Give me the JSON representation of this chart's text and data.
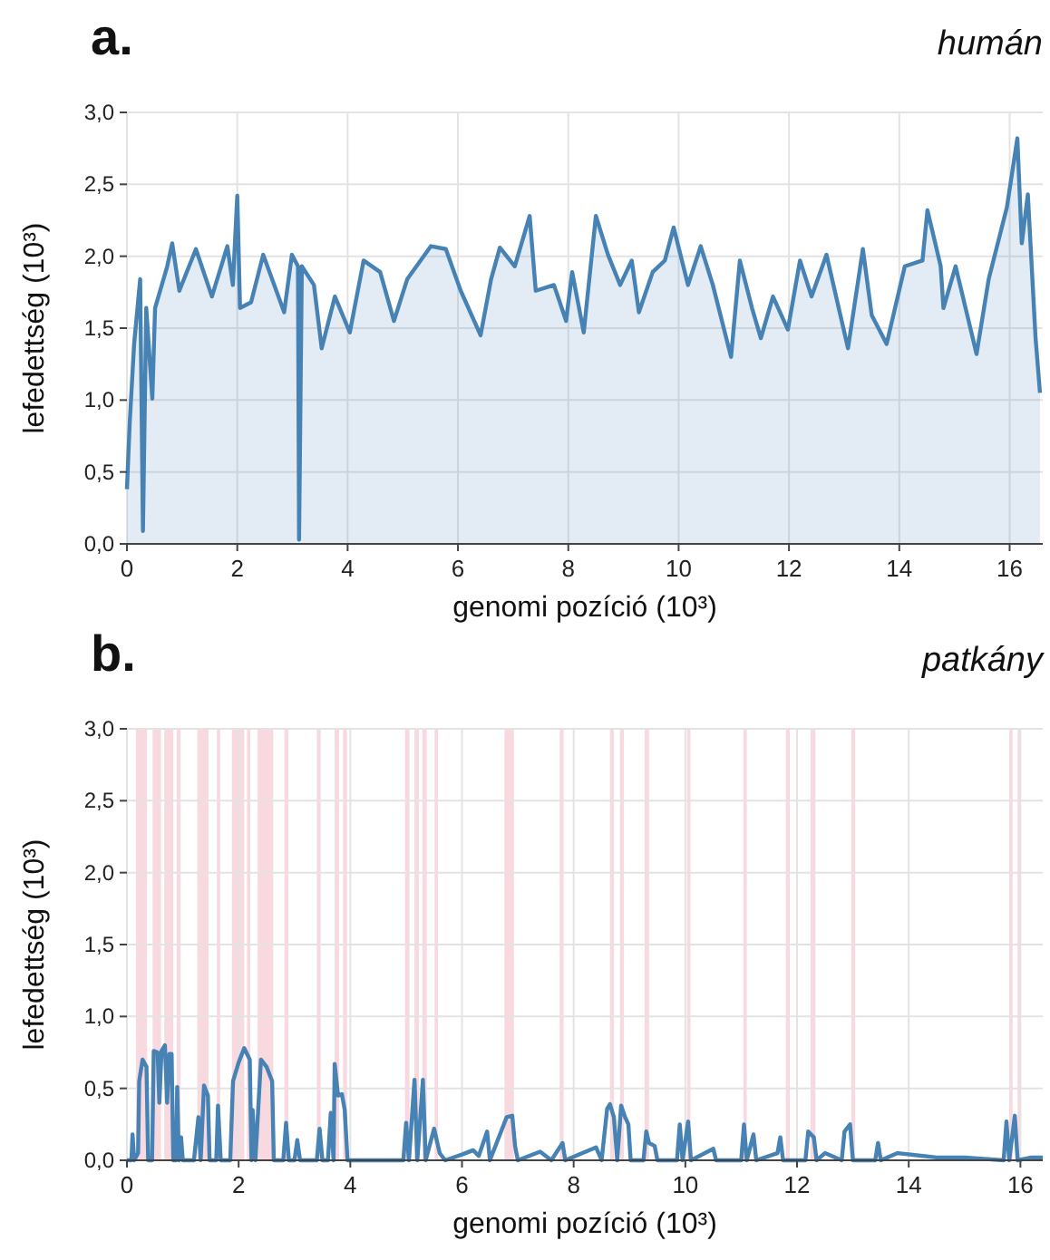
{
  "chart_data": [
    {
      "type": "area",
      "title": "a.",
      "subtitle": "humán",
      "xlabel": "genomi pozíció (10³)",
      "ylabel": "lefedettség (10³)",
      "color": "#4682b4",
      "grid": true,
      "xlim": [
        0,
        16.6
      ],
      "ylim": [
        0,
        3
      ],
      "xticks": [
        0,
        2,
        4,
        6,
        8,
        10,
        12,
        14,
        16
      ],
      "yticks": [
        {
          "value": 0,
          "label": "0,0"
        },
        {
          "value": 0.5,
          "label": "0,5"
        },
        {
          "value": 1,
          "label": "1,0"
        },
        {
          "value": 1.5,
          "label": "1,5"
        },
        {
          "value": 2,
          "label": "2,0"
        },
        {
          "value": 2.5,
          "label": "2,5"
        },
        {
          "value": 3,
          "label": "3,0"
        }
      ],
      "x": [
        0,
        0.05,
        0.13,
        0.24,
        0.29,
        0.35,
        0.46,
        0.51,
        0.73,
        0.82,
        0.95,
        1.25,
        1.54,
        1.82,
        1.92,
        2.0,
        2.05,
        2.25,
        2.47,
        2.85,
        2.99,
        3.1,
        3.12,
        3.17,
        3.39,
        3.53,
        3.77,
        4.04,
        4.29,
        4.59,
        4.84,
        5.08,
        5.51,
        5.78,
        6.05,
        6.41,
        6.6,
        6.76,
        7.03,
        7.3,
        7.41,
        7.74,
        7.96,
        8.07,
        8.28,
        8.5,
        8.72,
        8.94,
        9.15,
        9.28,
        9.53,
        9.75,
        9.91,
        10.17,
        10.4,
        10.62,
        10.95,
        11.11,
        11.33,
        11.49,
        11.71,
        11.98,
        12.2,
        12.41,
        12.68,
        13.07,
        13.34,
        13.5,
        13.77,
        14.1,
        14.42,
        14.51,
        14.75,
        14.8,
        15.02,
        15.4,
        15.62,
        15.95,
        16.14,
        16.22,
        16.33,
        16.47,
        16.55
      ],
      "values": [
        0.38,
        0.84,
        1.39,
        1.84,
        0.09,
        1.64,
        1.01,
        1.64,
        1.93,
        2.09,
        1.76,
        2.05,
        1.72,
        2.07,
        1.8,
        2.42,
        1.64,
        1.68,
        2.01,
        1.61,
        2.01,
        1.93,
        0.03,
        1.93,
        1.8,
        1.36,
        1.72,
        1.47,
        1.97,
        1.89,
        1.55,
        1.84,
        2.07,
        2.05,
        1.76,
        1.45,
        1.84,
        2.06,
        1.93,
        2.28,
        1.76,
        1.8,
        1.55,
        1.89,
        1.47,
        2.28,
        2.01,
        1.8,
        1.97,
        1.61,
        1.89,
        1.97,
        2.2,
        1.8,
        2.07,
        1.8,
        1.3,
        1.97,
        1.64,
        1.43,
        1.72,
        1.49,
        1.97,
        1.72,
        2.01,
        1.36,
        2.05,
        1.59,
        1.39,
        1.93,
        1.97,
        2.32,
        1.93,
        1.64,
        1.93,
        1.32,
        1.84,
        2.34,
        2.82,
        2.09,
        2.43,
        1.43,
        1.05
      ]
    },
    {
      "type": "line",
      "title": "b.",
      "subtitle": "patkány",
      "xlabel": "genomi pozíció (10³)",
      "ylabel": "lefedettség (10³)",
      "color": "#4682b4",
      "grid": true,
      "xlim": [
        0,
        16.4
      ],
      "ylim": [
        0,
        3
      ],
      "xticks": [
        0,
        2,
        4,
        6,
        8,
        10,
        12,
        14,
        16
      ],
      "yticks": [
        {
          "value": 0,
          "label": "0,0"
        },
        {
          "value": 0.5,
          "label": "0,5"
        },
        {
          "value": 1,
          "label": "1,0"
        },
        {
          "value": 1.5,
          "label": "1,5"
        },
        {
          "value": 2,
          "label": "2,0"
        },
        {
          "value": 2.5,
          "label": "2,5"
        },
        {
          "value": 3,
          "label": "3,0"
        }
      ],
      "bands": [
        {
          "axis": "x",
          "from": 0.16,
          "to": 0.36,
          "color": "#f9d9e0"
        },
        {
          "axis": "x",
          "from": 0.46,
          "to": 0.61,
          "color": "#f9d9e0"
        },
        {
          "axis": "x",
          "from": 0.67,
          "to": 0.83,
          "color": "#f9d9e0"
        },
        {
          "axis": "x",
          "from": 0.89,
          "to": 0.96,
          "color": "#f9d9e0"
        },
        {
          "axis": "x",
          "from": 1.26,
          "to": 1.46,
          "color": "#f9d9e0"
        },
        {
          "axis": "x",
          "from": 1.61,
          "to": 1.67,
          "color": "#f9d9e0"
        },
        {
          "axis": "x",
          "from": 1.88,
          "to": 2.1,
          "color": "#f9d9e0"
        },
        {
          "axis": "x",
          "from": 2.15,
          "to": 2.21,
          "color": "#f9d9e0"
        },
        {
          "axis": "x",
          "from": 2.34,
          "to": 2.62,
          "color": "#f9d9e0"
        },
        {
          "axis": "x",
          "from": 2.82,
          "to": 2.89,
          "color": "#f9d9e0"
        },
        {
          "axis": "x",
          "from": 3.4,
          "to": 3.47,
          "color": "#f9d9e0"
        },
        {
          "axis": "x",
          "from": 3.72,
          "to": 3.8,
          "color": "#f9d9e0"
        },
        {
          "axis": "x",
          "from": 3.87,
          "to": 3.94,
          "color": "#f9d9e0"
        },
        {
          "axis": "x",
          "from": 4.98,
          "to": 5.06,
          "color": "#f9d9e0"
        },
        {
          "axis": "x",
          "from": 5.15,
          "to": 5.23,
          "color": "#f9d9e0"
        },
        {
          "axis": "x",
          "from": 5.29,
          "to": 5.37,
          "color": "#f9d9e0"
        },
        {
          "axis": "x",
          "from": 5.51,
          "to": 5.57,
          "color": "#f9d9e0"
        },
        {
          "axis": "x",
          "from": 6.76,
          "to": 6.93,
          "color": "#f9d9e0"
        },
        {
          "axis": "x",
          "from": 7.75,
          "to": 7.82,
          "color": "#f9d9e0"
        },
        {
          "axis": "x",
          "from": 8.65,
          "to": 8.72,
          "color": "#f9d9e0"
        },
        {
          "axis": "x",
          "from": 8.83,
          "to": 8.9,
          "color": "#f9d9e0"
        },
        {
          "axis": "x",
          "from": 9.27,
          "to": 9.35,
          "color": "#f9d9e0"
        },
        {
          "axis": "x",
          "from": 10.03,
          "to": 10.09,
          "color": "#f9d9e0"
        },
        {
          "axis": "x",
          "from": 11.04,
          "to": 11.1,
          "color": "#f9d9e0"
        },
        {
          "axis": "x",
          "from": 11.8,
          "to": 11.87,
          "color": "#f9d9e0"
        },
        {
          "axis": "x",
          "from": 12.24,
          "to": 12.33,
          "color": "#f9d9e0"
        },
        {
          "axis": "x",
          "from": 12.97,
          "to": 13.04,
          "color": "#f9d9e0"
        },
        {
          "axis": "x",
          "from": 15.8,
          "to": 15.86,
          "color": "#f9d9e0"
        },
        {
          "axis": "x",
          "from": 15.95,
          "to": 16.01,
          "color": "#f9d9e0"
        }
      ],
      "x": [
        0,
        0.08,
        0.1,
        0.13,
        0.2,
        0.22,
        0.28,
        0.35,
        0.38,
        0.45,
        0.48,
        0.55,
        0.58,
        0.62,
        0.68,
        0.72,
        0.76,
        0.8,
        0.83,
        0.88,
        0.9,
        0.93,
        0.97,
        1.0,
        1.2,
        1.28,
        1.32,
        1.38,
        1.45,
        1.48,
        1.6,
        1.63,
        1.68,
        1.85,
        1.9,
        2.0,
        2.1,
        2.2,
        2.23,
        2.25,
        2.3,
        2.4,
        2.5,
        2.6,
        2.63,
        2.8,
        2.85,
        2.9,
        3.0,
        3.05,
        3.1,
        3.4,
        3.45,
        3.5,
        3.6,
        3.65,
        3.7,
        3.72,
        3.78,
        3.85,
        3.9,
        3.95,
        4.95,
        5.0,
        5.05,
        5.15,
        5.2,
        5.3,
        5.35,
        5.5,
        5.6,
        5.7,
        6.0,
        6.2,
        6.3,
        6.45,
        6.5,
        6.8,
        6.9,
        6.95,
        7.0,
        7.4,
        7.6,
        7.8,
        7.85,
        8.4,
        8.5,
        8.6,
        8.65,
        8.72,
        8.78,
        8.85,
        8.92,
        8.98,
        9.02,
        9.25,
        9.3,
        9.35,
        9.45,
        9.5,
        9.85,
        9.9,
        9.95,
        10.05,
        10.1,
        10.5,
        10.55,
        11.0,
        11.05,
        11.1,
        11.22,
        11.27,
        11.65,
        11.7,
        11.75,
        12.15,
        12.2,
        12.3,
        12.35,
        12.5,
        12.8,
        12.85,
        12.95,
        13.0,
        13.4,
        13.45,
        13.5,
        13.8,
        14.5,
        15.0,
        15.7,
        15.75,
        15.8,
        15.9,
        15.95,
        16.2,
        16.4
      ],
      "values": [
        0,
        0,
        0.18,
        0,
        0.05,
        0.55,
        0.7,
        0.65,
        0,
        0,
        0.76,
        0.75,
        0.4,
        0.76,
        0.8,
        0.4,
        0.74,
        0.74,
        0,
        0,
        0.51,
        0,
        0.16,
        0,
        0,
        0.3,
        0,
        0.52,
        0.45,
        0,
        0,
        0.38,
        0,
        0,
        0.55,
        0.68,
        0.78,
        0.7,
        0,
        0.35,
        0,
        0.7,
        0.65,
        0.55,
        0,
        0,
        0.26,
        0,
        0,
        0.14,
        0,
        0,
        0.22,
        0,
        0,
        0.33,
        0,
        0.67,
        0.45,
        0.46,
        0.35,
        0,
        0,
        0.26,
        0,
        0.56,
        0,
        0.56,
        0,
        0.22,
        0.05,
        0,
        0.04,
        0.07,
        0.03,
        0.2,
        0,
        0.3,
        0.31,
        0.1,
        0,
        0.06,
        0,
        0.12,
        0,
        0.09,
        0,
        0.36,
        0.39,
        0.3,
        0,
        0.38,
        0.3,
        0.25,
        0,
        0,
        0.2,
        0.12,
        0.1,
        0,
        0,
        0.25,
        0,
        0.27,
        0,
        0.08,
        0,
        0,
        0.25,
        0,
        0.18,
        0,
        0.05,
        0.16,
        0,
        0,
        0.2,
        0.16,
        0,
        0.05,
        0,
        0.2,
        0.25,
        0,
        0,
        0.12,
        0,
        0.05,
        0.02,
        0.02,
        0,
        0.27,
        0,
        0.31,
        0,
        0.02,
        0.02
      ]
    }
  ]
}
